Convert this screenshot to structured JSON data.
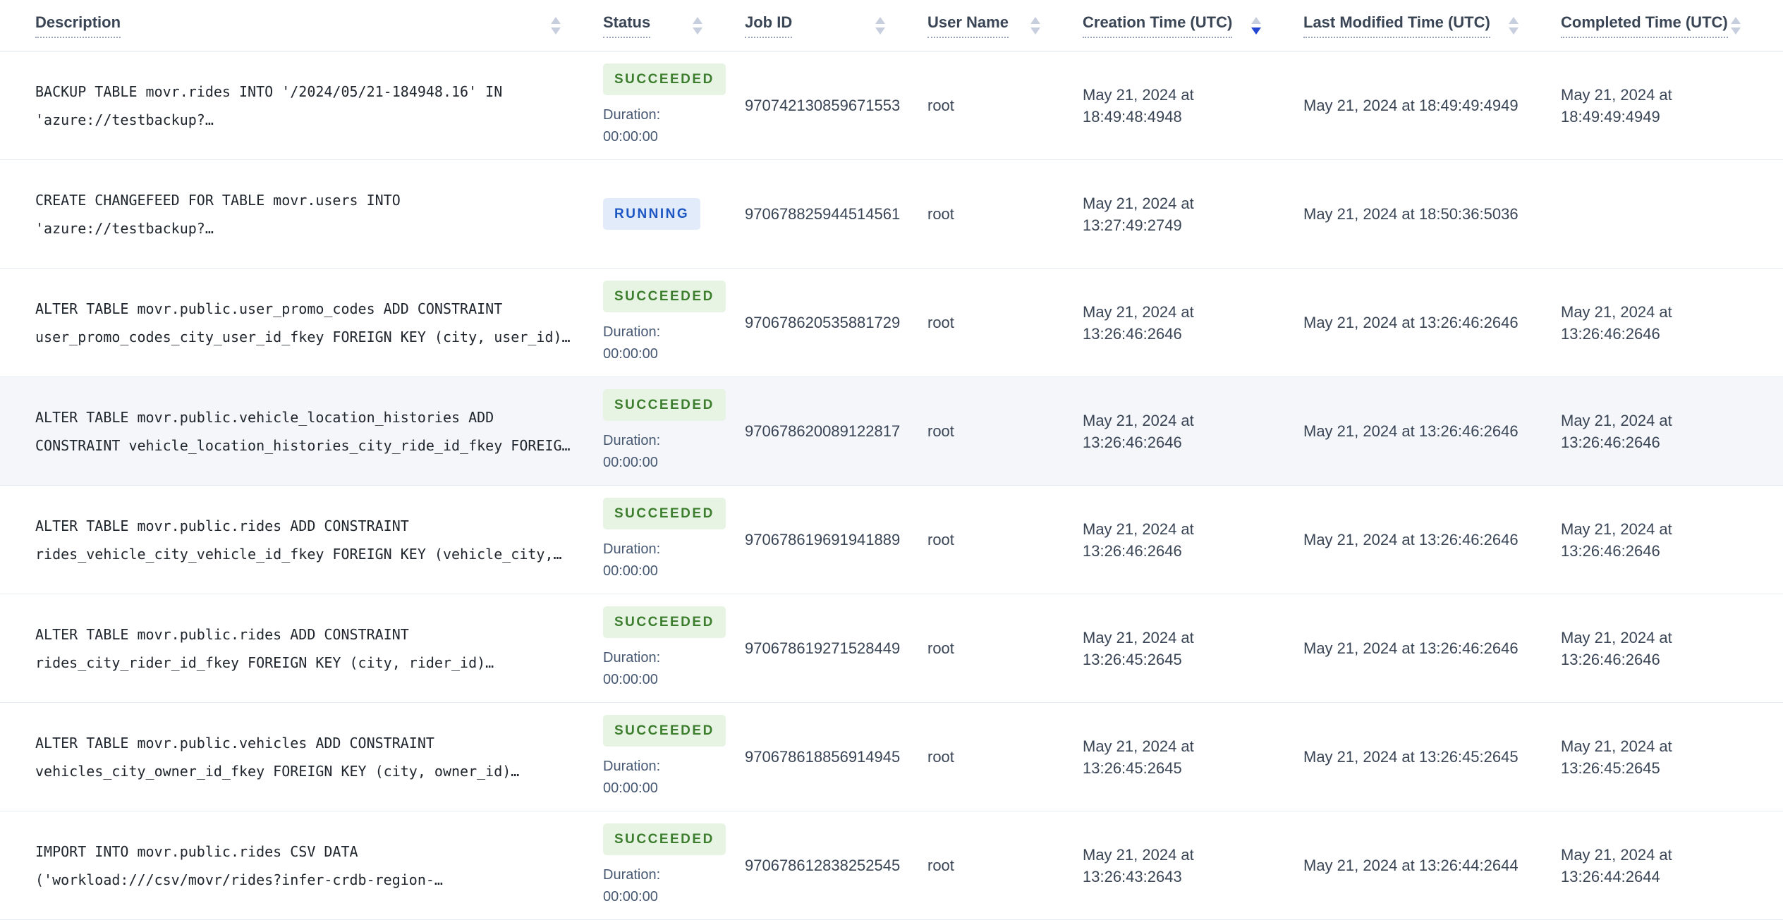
{
  "colors": {
    "sort_active": "#2347d2",
    "succeeded_text": "#3c7d2e",
    "succeeded_bg": "#e7f4e4",
    "running_text": "#1c56c3",
    "running_bg": "#e1ebfa",
    "row_highlight": "#f4f6fa"
  },
  "table": {
    "duration_label": "Duration:",
    "columns": [
      {
        "label": "Description",
        "sort": "none"
      },
      {
        "label": "Status",
        "sort": "none"
      },
      {
        "label": "Job ID",
        "sort": "none"
      },
      {
        "label": "User Name",
        "sort": "none"
      },
      {
        "label": "Creation Time (UTC)",
        "sort": "desc"
      },
      {
        "label": "Last Modified Time (UTC)",
        "sort": "none"
      },
      {
        "label": "Completed Time (UTC)",
        "sort": "none"
      }
    ],
    "rows": [
      {
        "description": "BACKUP TABLE movr.rides INTO '/2024/05/21-184948.16' IN 'azure://testbackup?…",
        "status": "SUCCEEDED",
        "duration_label": "Duration:",
        "duration": "00:00:00",
        "job_id": "970742130859671553",
        "user": "root",
        "created": "May 21, 2024 at 18:49:48:4948",
        "modified": "May 21, 2024 at 18:49:49:4949",
        "completed": "May 21, 2024 at 18:49:49:4949",
        "highlighted": false
      },
      {
        "description": "CREATE CHANGEFEED FOR TABLE movr.users INTO 'azure://testbackup?…",
        "status": "RUNNING",
        "duration_label": "",
        "duration": "",
        "job_id": "970678825944514561",
        "user": "root",
        "created": "May 21, 2024 at 13:27:49:2749",
        "modified": "May 21, 2024 at 18:50:36:5036",
        "completed": "",
        "highlighted": false
      },
      {
        "description": "ALTER TABLE movr.public.user_promo_codes ADD CONSTRAINT user_promo_codes_city_user_id_fkey FOREIGN KEY (city, user_id)…",
        "status": "SUCCEEDED",
        "duration_label": "Duration:",
        "duration": "00:00:00",
        "job_id": "970678620535881729",
        "user": "root",
        "created": "May 21, 2024 at 13:26:46:2646",
        "modified": "May 21, 2024 at 13:26:46:2646",
        "completed": "May 21, 2024 at 13:26:46:2646",
        "highlighted": false
      },
      {
        "description": "ALTER TABLE movr.public.vehicle_location_histories ADD CONSTRAINT vehicle_location_histories_city_ride_id_fkey FOREIG…",
        "status": "SUCCEEDED",
        "duration_label": "Duration:",
        "duration": "00:00:00",
        "job_id": "970678620089122817",
        "user": "root",
        "created": "May 21, 2024 at 13:26:46:2646",
        "modified": "May 21, 2024 at 13:26:46:2646",
        "completed": "May 21, 2024 at 13:26:46:2646",
        "highlighted": true
      },
      {
        "description": "ALTER TABLE movr.public.rides ADD CONSTRAINT rides_vehicle_city_vehicle_id_fkey FOREIGN KEY (vehicle_city,…",
        "status": "SUCCEEDED",
        "duration_label": "Duration:",
        "duration": "00:00:00",
        "job_id": "970678619691941889",
        "user": "root",
        "created": "May 21, 2024 at 13:26:46:2646",
        "modified": "May 21, 2024 at 13:26:46:2646",
        "completed": "May 21, 2024 at 13:26:46:2646",
        "highlighted": false
      },
      {
        "description": "ALTER TABLE movr.public.rides ADD CONSTRAINT rides_city_rider_id_fkey FOREIGN KEY (city, rider_id)…",
        "status": "SUCCEEDED",
        "duration_label": "Duration:",
        "duration": "00:00:00",
        "job_id": "970678619271528449",
        "user": "root",
        "created": "May 21, 2024 at 13:26:45:2645",
        "modified": "May 21, 2024 at 13:26:46:2646",
        "completed": "May 21, 2024 at 13:26:46:2646",
        "highlighted": false
      },
      {
        "description": "ALTER TABLE movr.public.vehicles ADD CONSTRAINT vehicles_city_owner_id_fkey FOREIGN KEY (city, owner_id)…",
        "status": "SUCCEEDED",
        "duration_label": "Duration:",
        "duration": "00:00:00",
        "job_id": "970678618856914945",
        "user": "root",
        "created": "May 21, 2024 at 13:26:45:2645",
        "modified": "May 21, 2024 at 13:26:45:2645",
        "completed": "May 21, 2024 at 13:26:45:2645",
        "highlighted": false
      },
      {
        "description": "IMPORT INTO movr.public.rides CSV DATA ('workload:///csv/movr/rides?infer-crdb-region-…",
        "status": "SUCCEEDED",
        "duration_label": "Duration:",
        "duration": "00:00:00",
        "job_id": "970678612838252545",
        "user": "root",
        "created": "May 21, 2024 at 13:26:43:2643",
        "modified": "May 21, 2024 at 13:26:44:2644",
        "completed": "May 21, 2024 at 13:26:44:2644",
        "highlighted": false
      }
    ]
  }
}
